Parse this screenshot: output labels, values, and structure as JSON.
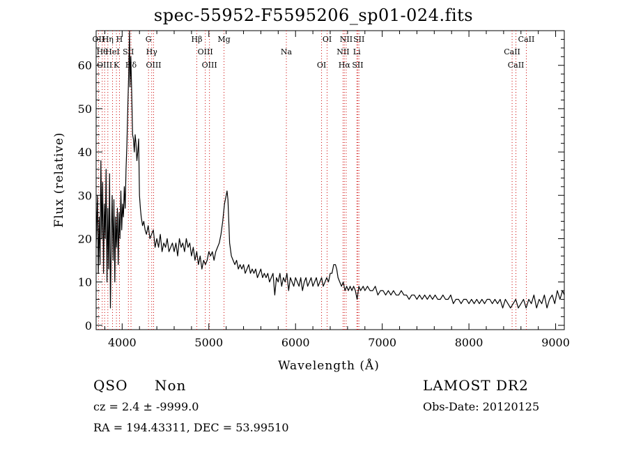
{
  "title": "spec-55952-F5595206_sp01-024.fits",
  "info": {
    "class": "QSO",
    "subclass": "Non",
    "survey": "LAMOST DR2",
    "cz": "cz = 2.4 ± -9999.0",
    "obs_date": "Obs-Date: 20120125",
    "coords": "RA = 194.43311, DEC =  53.99510"
  },
  "chart_data": {
    "type": "line",
    "title": "spec-55952-F5595206_sp01-024.fits",
    "xlabel": "Wavelength (Å)",
    "ylabel": "Flux (relative)",
    "xlim": [
      3700,
      9100
    ],
    "ylim": [
      -1,
      68
    ],
    "xticks": [
      4000,
      5000,
      6000,
      7000,
      8000,
      9000
    ],
    "yticks": [
      0,
      10,
      20,
      30,
      40,
      50,
      60
    ],
    "grid": false,
    "line_color": "#000000",
    "marker_color": "#cc0000",
    "series": [
      {
        "values": [
          [
            3700,
            18
          ],
          [
            3715,
            30
          ],
          [
            3725,
            12
          ],
          [
            3735,
            25
          ],
          [
            3745,
            14
          ],
          [
            3755,
            38
          ],
          [
            3765,
            20
          ],
          [
            3775,
            33
          ],
          [
            3785,
            12
          ],
          [
            3795,
            28
          ],
          [
            3805,
            20
          ],
          [
            3815,
            36
          ],
          [
            3825,
            10
          ],
          [
            3835,
            27
          ],
          [
            3845,
            13
          ],
          [
            3855,
            35
          ],
          [
            3865,
            4
          ],
          [
            3875,
            20
          ],
          [
            3885,
            30
          ],
          [
            3895,
            15
          ],
          [
            3905,
            29
          ],
          [
            3915,
            10
          ],
          [
            3925,
            25
          ],
          [
            3935,
            18
          ],
          [
            3945,
            27
          ],
          [
            3955,
            14
          ],
          [
            3965,
            26
          ],
          [
            3975,
            20
          ],
          [
            3985,
            31
          ],
          [
            3995,
            22
          ],
          [
            4005,
            28
          ],
          [
            4015,
            25
          ],
          [
            4025,
            32
          ],
          [
            4035,
            27
          ],
          [
            4045,
            36
          ],
          [
            4055,
            42
          ],
          [
            4065,
            50
          ],
          [
            4075,
            58
          ],
          [
            4085,
            68
          ],
          [
            4090,
            55
          ],
          [
            4100,
            62
          ],
          [
            4110,
            54
          ],
          [
            4120,
            44
          ],
          [
            4130,
            43
          ],
          [
            4140,
            40
          ],
          [
            4150,
            44
          ],
          [
            4160,
            42
          ],
          [
            4170,
            38
          ],
          [
            4180,
            40
          ],
          [
            4190,
            43
          ],
          [
            4200,
            30
          ],
          [
            4210,
            27
          ],
          [
            4220,
            25
          ],
          [
            4235,
            23
          ],
          [
            4250,
            24
          ],
          [
            4265,
            22
          ],
          [
            4280,
            21
          ],
          [
            4300,
            23
          ],
          [
            4320,
            20
          ],
          [
            4340,
            21
          ],
          [
            4360,
            22
          ],
          [
            4380,
            18
          ],
          [
            4400,
            20
          ],
          [
            4420,
            18
          ],
          [
            4440,
            21
          ],
          [
            4460,
            17
          ],
          [
            4480,
            19
          ],
          [
            4500,
            18
          ],
          [
            4520,
            20
          ],
          [
            4540,
            17
          ],
          [
            4560,
            18
          ],
          [
            4580,
            19
          ],
          [
            4600,
            17
          ],
          [
            4620,
            19
          ],
          [
            4640,
            16
          ],
          [
            4660,
            20
          ],
          [
            4680,
            18
          ],
          [
            4700,
            19
          ],
          [
            4720,
            17
          ],
          [
            4740,
            20
          ],
          [
            4760,
            18
          ],
          [
            4780,
            19
          ],
          [
            4800,
            16
          ],
          [
            4820,
            18
          ],
          [
            4840,
            15
          ],
          [
            4860,
            17
          ],
          [
            4880,
            14
          ],
          [
            4900,
            16
          ],
          [
            4920,
            13
          ],
          [
            4940,
            15
          ],
          [
            4960,
            14
          ],
          [
            4980,
            15
          ],
          [
            5000,
            17
          ],
          [
            5020,
            16
          ],
          [
            5040,
            17
          ],
          [
            5060,
            15
          ],
          [
            5080,
            17
          ],
          [
            5100,
            18
          ],
          [
            5120,
            19
          ],
          [
            5140,
            21
          ],
          [
            5160,
            24
          ],
          [
            5180,
            28
          ],
          [
            5200,
            30
          ],
          [
            5210,
            31
          ],
          [
            5220,
            29
          ],
          [
            5230,
            24
          ],
          [
            5240,
            19
          ],
          [
            5260,
            16
          ],
          [
            5280,
            15
          ],
          [
            5300,
            14
          ],
          [
            5320,
            15
          ],
          [
            5340,
            13
          ],
          [
            5360,
            14
          ],
          [
            5380,
            13
          ],
          [
            5400,
            14
          ],
          [
            5420,
            12
          ],
          [
            5440,
            13
          ],
          [
            5460,
            14
          ],
          [
            5480,
            12
          ],
          [
            5500,
            13
          ],
          [
            5520,
            12
          ],
          [
            5540,
            13
          ],
          [
            5560,
            11
          ],
          [
            5580,
            12
          ],
          [
            5600,
            13
          ],
          [
            5620,
            11
          ],
          [
            5640,
            12
          ],
          [
            5660,
            11
          ],
          [
            5680,
            12
          ],
          [
            5700,
            10
          ],
          [
            5720,
            11
          ],
          [
            5740,
            12
          ],
          [
            5760,
            7
          ],
          [
            5780,
            11
          ],
          [
            5800,
            10
          ],
          [
            5820,
            12
          ],
          [
            5840,
            9
          ],
          [
            5860,
            11
          ],
          [
            5880,
            10
          ],
          [
            5900,
            12
          ],
          [
            5920,
            8
          ],
          [
            5940,
            11
          ],
          [
            5960,
            10
          ],
          [
            5980,
            9
          ],
          [
            6000,
            11
          ],
          [
            6020,
            10
          ],
          [
            6040,
            9
          ],
          [
            6060,
            11
          ],
          [
            6080,
            8
          ],
          [
            6100,
            10
          ],
          [
            6120,
            11
          ],
          [
            6140,
            9
          ],
          [
            6160,
            10
          ],
          [
            6180,
            11
          ],
          [
            6200,
            9
          ],
          [
            6220,
            10
          ],
          [
            6240,
            11
          ],
          [
            6260,
            9
          ],
          [
            6280,
            10
          ],
          [
            6300,
            11
          ],
          [
            6320,
            9
          ],
          [
            6340,
            10
          ],
          [
            6360,
            11
          ],
          [
            6380,
            10
          ],
          [
            6400,
            12
          ],
          [
            6420,
            12
          ],
          [
            6440,
            14
          ],
          [
            6460,
            14
          ],
          [
            6475,
            13
          ],
          [
            6490,
            11
          ],
          [
            6510,
            10
          ],
          [
            6530,
            9
          ],
          [
            6550,
            10
          ],
          [
            6570,
            8
          ],
          [
            6590,
            9
          ],
          [
            6610,
            8
          ],
          [
            6630,
            9
          ],
          [
            6650,
            8
          ],
          [
            6670,
            9
          ],
          [
            6690,
            8
          ],
          [
            6710,
            6
          ],
          [
            6730,
            9
          ],
          [
            6750,
            8
          ],
          [
            6780,
            9
          ],
          [
            6800,
            8
          ],
          [
            6830,
            9
          ],
          [
            6860,
            8
          ],
          [
            6890,
            8
          ],
          [
            6920,
            9
          ],
          [
            6950,
            7
          ],
          [
            6980,
            8
          ],
          [
            7010,
            8
          ],
          [
            7040,
            7
          ],
          [
            7070,
            8
          ],
          [
            7100,
            7
          ],
          [
            7130,
            8
          ],
          [
            7160,
            7
          ],
          [
            7190,
            7
          ],
          [
            7220,
            8
          ],
          [
            7250,
            7
          ],
          [
            7280,
            7
          ],
          [
            7310,
            6
          ],
          [
            7340,
            7
          ],
          [
            7370,
            7
          ],
          [
            7400,
            6
          ],
          [
            7430,
            7
          ],
          [
            7460,
            6
          ],
          [
            7490,
            7
          ],
          [
            7520,
            6
          ],
          [
            7550,
            7
          ],
          [
            7580,
            6
          ],
          [
            7610,
            7
          ],
          [
            7640,
            6
          ],
          [
            7670,
            6
          ],
          [
            7700,
            7
          ],
          [
            7730,
            6
          ],
          [
            7760,
            6
          ],
          [
            7790,
            7
          ],
          [
            7820,
            5
          ],
          [
            7850,
            6
          ],
          [
            7880,
            6
          ],
          [
            7910,
            5
          ],
          [
            7940,
            6
          ],
          [
            7970,
            6
          ],
          [
            8000,
            5
          ],
          [
            8030,
            6
          ],
          [
            8060,
            5
          ],
          [
            8090,
            6
          ],
          [
            8120,
            5
          ],
          [
            8150,
            6
          ],
          [
            8180,
            5
          ],
          [
            8210,
            6
          ],
          [
            8240,
            6
          ],
          [
            8270,
            5
          ],
          [
            8300,
            6
          ],
          [
            8330,
            5
          ],
          [
            8360,
            6
          ],
          [
            8390,
            4
          ],
          [
            8420,
            6
          ],
          [
            8450,
            5
          ],
          [
            8480,
            4
          ],
          [
            8510,
            5
          ],
          [
            8540,
            6
          ],
          [
            8570,
            4
          ],
          [
            8600,
            5
          ],
          [
            8630,
            6
          ],
          [
            8660,
            4
          ],
          [
            8690,
            6
          ],
          [
            8720,
            5
          ],
          [
            8750,
            7
          ],
          [
            8780,
            4
          ],
          [
            8810,
            6
          ],
          [
            8840,
            5
          ],
          [
            8870,
            7
          ],
          [
            8900,
            4
          ],
          [
            8930,
            6
          ],
          [
            8960,
            7
          ],
          [
            8990,
            5
          ],
          [
            9020,
            8
          ],
          [
            9050,
            6
          ],
          [
            9080,
            8
          ],
          [
            9100,
            7
          ]
        ]
      }
    ],
    "lines": [
      {
        "x": 3727,
        "labels": [
          "OII"
        ]
      },
      {
        "x": 3770,
        "labels": [
          "Hθ"
        ]
      },
      {
        "x": 3798,
        "labels": [
          "OIII"
        ]
      },
      {
        "x": 3835,
        "labels": [
          "Hη"
        ]
      },
      {
        "x": 3889,
        "labels": [
          "HeI"
        ]
      },
      {
        "x": 3934,
        "labels": [
          "K"
        ]
      },
      {
        "x": 3969,
        "labels": [
          "H"
        ]
      },
      {
        "x": 4072,
        "labels": [
          "SII"
        ]
      },
      {
        "x": 4102,
        "labels": [
          "Hδ"
        ]
      },
      {
        "x": 4304,
        "labels": [
          "G"
        ]
      },
      {
        "x": 4341,
        "labels": [
          "Hγ"
        ]
      },
      {
        "x": 4363,
        "labels": [
          "OIII"
        ]
      },
      {
        "x": 4861,
        "labels": [
          "Hβ"
        ]
      },
      {
        "x": 4959,
        "labels": [
          "OIII"
        ]
      },
      {
        "x": 5007,
        "labels": [
          "OIII"
        ]
      },
      {
        "x": 5175,
        "labels": [
          "Mg"
        ]
      },
      {
        "x": 5894,
        "labels": [
          "Na"
        ]
      },
      {
        "x": 6300,
        "labels": [
          "OI"
        ]
      },
      {
        "x": 6364,
        "labels": [
          "OI"
        ]
      },
      {
        "x": 6548,
        "labels": [
          "NII"
        ]
      },
      {
        "x": 6563,
        "labels": [
          "Hα"
        ]
      },
      {
        "x": 6584,
        "labels": [
          "NII"
        ]
      },
      {
        "x": 6707,
        "labels": [
          "Li"
        ]
      },
      {
        "x": 6717,
        "labels": [
          "SII"
        ]
      },
      {
        "x": 6731,
        "labels": [
          "SII"
        ]
      },
      {
        "x": 8498,
        "labels": [
          "CaII"
        ]
      },
      {
        "x": 8542,
        "labels": [
          "CaII"
        ]
      },
      {
        "x": 8662,
        "labels": [
          "CaII"
        ]
      }
    ]
  }
}
